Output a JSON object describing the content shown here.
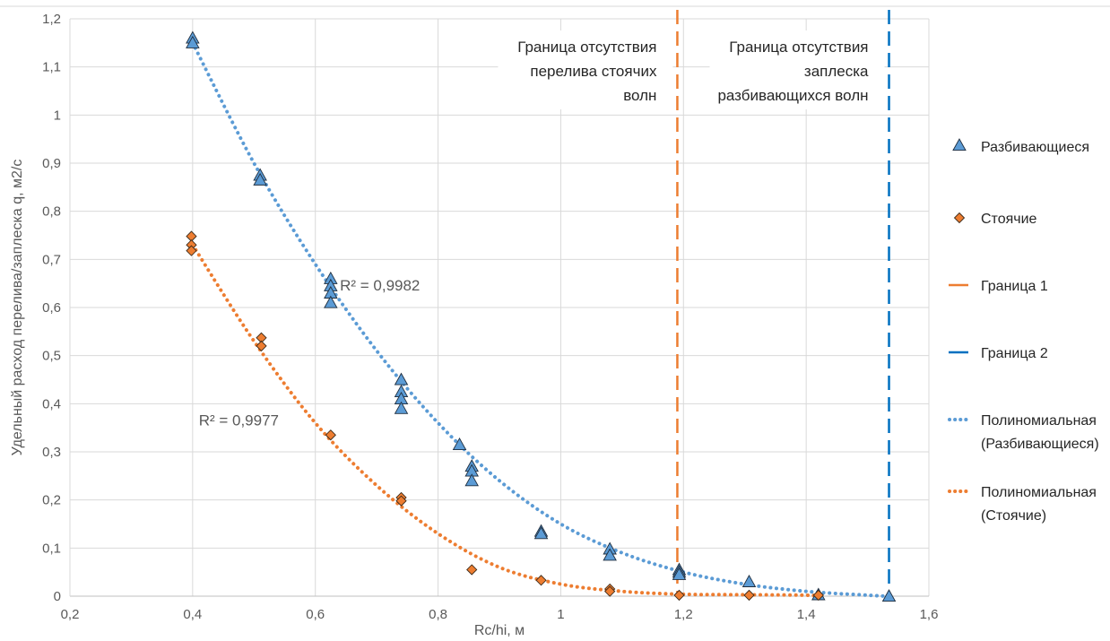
{
  "chart_data": {
    "type": "scatter",
    "xlabel": "Rc/hi, м",
    "ylabel": "Удельный расход перелива/заплеска q, м2/с",
    "xlim": [
      0.2,
      1.6
    ],
    "ylim": [
      0,
      1.2
    ],
    "x_ticks": [
      "0,2",
      "0,4",
      "0,6",
      "0,8",
      "1",
      "1,2",
      "1,4",
      "1,6"
    ],
    "y_ticks": [
      "0",
      "0,1",
      "0,2",
      "0,3",
      "0,4",
      "0,5",
      "0,6",
      "0,7",
      "0,8",
      "0,9",
      "1",
      "1,1",
      "1,2"
    ],
    "grid": true,
    "legend_position": "right",
    "series": [
      {
        "name": "Разбивающиеся",
        "marker": "triangle",
        "color": "#5b9bd5",
        "points": [
          [
            0.4,
            1.16
          ],
          [
            0.4,
            1.15
          ],
          [
            0.51,
            0.875
          ],
          [
            0.51,
            0.865
          ],
          [
            0.625,
            0.66
          ],
          [
            0.625,
            0.645
          ],
          [
            0.625,
            0.63
          ],
          [
            0.625,
            0.61
          ],
          [
            0.74,
            0.45
          ],
          [
            0.74,
            0.425
          ],
          [
            0.74,
            0.41
          ],
          [
            0.74,
            0.39
          ],
          [
            0.835,
            0.315
          ],
          [
            0.855,
            0.27
          ],
          [
            0.855,
            0.26
          ],
          [
            0.855,
            0.24
          ],
          [
            0.968,
            0.135
          ],
          [
            0.968,
            0.13
          ],
          [
            1.08,
            0.098
          ],
          [
            1.08,
            0.085
          ],
          [
            1.193,
            0.055
          ],
          [
            1.193,
            0.05
          ],
          [
            1.193,
            0.045
          ],
          [
            1.307,
            0.03
          ],
          [
            1.42,
            0.003
          ],
          [
            1.535,
            0.0
          ]
        ]
      },
      {
        "name": "Стоячие",
        "marker": "diamond",
        "color": "#ed7d31",
        "points": [
          [
            0.398,
            0.748
          ],
          [
            0.398,
            0.73
          ],
          [
            0.398,
            0.718
          ],
          [
            0.512,
            0.537
          ],
          [
            0.512,
            0.52
          ],
          [
            0.625,
            0.335
          ],
          [
            0.74,
            0.205
          ],
          [
            0.74,
            0.198
          ],
          [
            0.855,
            0.055
          ],
          [
            0.968,
            0.033
          ],
          [
            1.08,
            0.015
          ],
          [
            1.08,
            0.01
          ],
          [
            1.193,
            0.002
          ],
          [
            1.307,
            0.002
          ],
          [
            1.42,
            0.002
          ]
        ]
      }
    ],
    "trendlines": [
      {
        "name": "Полиномиальная (Разбивающиеся)",
        "color": "#5b9bd5",
        "style": "dotted",
        "points": [
          [
            0.4,
            1.15
          ],
          [
            0.5,
            0.9
          ],
          [
            0.6,
            0.69
          ],
          [
            0.7,
            0.51
          ],
          [
            0.8,
            0.36
          ],
          [
            0.9,
            0.24
          ],
          [
            1.0,
            0.15
          ],
          [
            1.1,
            0.09
          ],
          [
            1.2,
            0.05
          ],
          [
            1.3,
            0.025
          ],
          [
            1.4,
            0.01
          ],
          [
            1.5,
            0.002
          ],
          [
            1.53,
            0.0
          ]
        ]
      },
      {
        "name": "Полиномиальная (Стоячие)",
        "color": "#ed7d31",
        "style": "dotted",
        "points": [
          [
            0.4,
            0.73
          ],
          [
            0.5,
            0.53
          ],
          [
            0.6,
            0.36
          ],
          [
            0.7,
            0.23
          ],
          [
            0.8,
            0.13
          ],
          [
            0.9,
            0.06
          ],
          [
            1.0,
            0.025
          ],
          [
            1.1,
            0.01
          ],
          [
            1.2,
            0.004
          ],
          [
            1.3,
            0.003
          ],
          [
            1.4,
            0.002
          ],
          [
            1.43,
            0.0
          ]
        ]
      }
    ],
    "boundaries": [
      {
        "name": "Граница 1",
        "x": 1.19,
        "color": "#ed7d31",
        "style": "dashed",
        "label": [
          "Граница отсутствия",
          "перелива стоячих",
          "волн"
        ]
      },
      {
        "name": "Граница 2",
        "x": 1.535,
        "color": "#0070c0",
        "style": "dashed",
        "label": [
          "Граница отсутствия",
          "заплеска",
          "разбивающихся волн"
        ]
      }
    ],
    "annotations": [
      {
        "text": "R² = 0,9982",
        "x": 0.64,
        "y": 0.635
      },
      {
        "text": "R² = 0,9977",
        "x": 0.41,
        "y": 0.355
      }
    ],
    "legend": [
      {
        "label": "Разбивающиеся",
        "kind": "triangle",
        "color": "#5b9bd5"
      },
      {
        "label": "Стоячие",
        "kind": "diamond",
        "color": "#ed7d31"
      },
      {
        "label": "Граница 1",
        "kind": "line",
        "color": "#ed7d31"
      },
      {
        "label": "Граница 2",
        "kind": "line",
        "color": "#0070c0"
      },
      {
        "label": "Полиномиальная (Разбивающиеся)",
        "lines": [
          "Полиномиальная",
          "(Разбивающиеся)"
        ],
        "kind": "dotted",
        "color": "#5b9bd5"
      },
      {
        "label": "Полиномиальная (Стоячие)",
        "lines": [
          "Полиномиальная",
          "(Стоячие)"
        ],
        "kind": "dotted",
        "color": "#ed7d31"
      }
    ]
  }
}
